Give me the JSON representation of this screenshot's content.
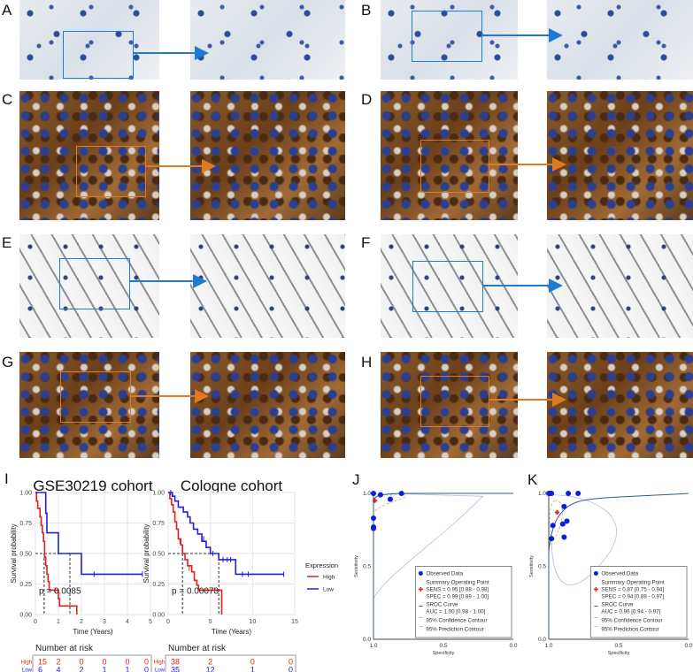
{
  "panels": {
    "labels": [
      "A",
      "B",
      "C",
      "D",
      "E",
      "F",
      "G",
      "H",
      "I",
      "J",
      "K"
    ]
  },
  "colors": {
    "blue_box": "#1f7bd0",
    "orange_box": "#e07a20",
    "high": "#e02020",
    "low": "#2020e0"
  },
  "chart_data": [
    {
      "type": "line",
      "subtype": "kaplan-meier",
      "title": "GSE30219 cohort",
      "xlabel": "Time (Years)",
      "ylabel": "Survival probability",
      "xlim": [
        0,
        5
      ],
      "ylim": [
        0,
        1
      ],
      "xticks": [
        "0",
        "1",
        "2",
        "3",
        "4",
        "5"
      ],
      "yticks": [
        "0.00",
        "0.25",
        "0.50",
        "0.75",
        "1.00"
      ],
      "pvalue": "p = 0.0085",
      "grid": true,
      "series": [
        {
          "name": "High",
          "color": "#e02020",
          "points": [
            [
              0,
              1
            ],
            [
              0.05,
              0.93
            ],
            [
              0.1,
              0.87
            ],
            [
              0.2,
              0.8
            ],
            [
              0.25,
              0.73
            ],
            [
              0.3,
              0.67
            ],
            [
              0.35,
              0.6
            ],
            [
              0.4,
              0.47
            ],
            [
              0.45,
              0.4
            ],
            [
              0.5,
              0.33
            ],
            [
              0.55,
              0.27
            ],
            [
              0.6,
              0.2
            ],
            [
              1.0,
              0.13
            ],
            [
              1.05,
              0.07
            ],
            [
              1.8,
              0
            ]
          ],
          "censored": [
            [
              0.85,
              0.2
            ]
          ],
          "median": 0.38
        },
        {
          "name": "Low",
          "color": "#2020e0",
          "points": [
            [
              0,
              1
            ],
            [
              0.45,
              0.83
            ],
            [
              0.5,
              0.67
            ],
            [
              1.0,
              0.5
            ],
            [
              2.0,
              0.33
            ],
            [
              4.65,
              0.33
            ]
          ],
          "censored": [
            [
              2.55,
              0.33
            ],
            [
              4.65,
              0.33
            ]
          ],
          "median": 1.5
        }
      ],
      "risk_table": {
        "title": "Number at risk",
        "rows": [
          {
            "label": "High",
            "values": [
              "15",
              "2",
              "0",
              "0",
              "0",
              "0"
            ]
          },
          {
            "label": "Low",
            "values": [
              "6",
              "4",
              "2",
              "1",
              "1",
              "0"
            ]
          }
        ]
      }
    },
    {
      "type": "line",
      "subtype": "kaplan-meier",
      "title": "Cologne cohort",
      "xlabel": "Time (Years)",
      "ylabel": "Survival probability",
      "xlim": [
        0,
        15
      ],
      "ylim": [
        0,
        1
      ],
      "xticks": [
        "0",
        "5",
        "10",
        "15"
      ],
      "yticks": [
        "0.00",
        "0.25",
        "0.50",
        "0.75",
        "1.00"
      ],
      "pvalue": "p = 0.00073",
      "grid": true,
      "series": [
        {
          "name": "High",
          "color": "#e02020",
          "points": [
            [
              0,
              1
            ],
            [
              0.2,
              0.95
            ],
            [
              0.4,
              0.9
            ],
            [
              0.6,
              0.84
            ],
            [
              0.8,
              0.76
            ],
            [
              1.0,
              0.7
            ],
            [
              1.2,
              0.62
            ],
            [
              1.5,
              0.57
            ],
            [
              1.7,
              0.5
            ],
            [
              2.0,
              0.45
            ],
            [
              2.3,
              0.4
            ],
            [
              2.8,
              0.35
            ],
            [
              3.1,
              0.28
            ],
            [
              3.4,
              0.24
            ],
            [
              3.6,
              0.2
            ],
            [
              6.3,
              0.2
            ],
            [
              6.35,
              0
            ]
          ],
          "censored": [
            [
              1.4,
              0.6
            ],
            [
              2.5,
              0.38
            ],
            [
              5.5,
              0.2
            ]
          ],
          "median": 1.7
        },
        {
          "name": "Low",
          "color": "#2020e0",
          "points": [
            [
              0,
              1
            ],
            [
              0.5,
              0.97
            ],
            [
              0.8,
              0.93
            ],
            [
              1.2,
              0.88
            ],
            [
              1.8,
              0.84
            ],
            [
              2.3,
              0.8
            ],
            [
              2.6,
              0.75
            ],
            [
              3.0,
              0.7
            ],
            [
              3.5,
              0.66
            ],
            [
              4.0,
              0.6
            ],
            [
              4.5,
              0.55
            ],
            [
              5.0,
              0.5
            ],
            [
              5.8,
              0.5
            ],
            [
              6.0,
              0.45
            ],
            [
              7.8,
              0.45
            ],
            [
              8.0,
              0.33
            ],
            [
              13.7,
              0.33
            ]
          ],
          "censored": [
            [
              0.3,
              1
            ],
            [
              4.2,
              0.62
            ],
            [
              5.3,
              0.5
            ],
            [
              6.5,
              0.45
            ],
            [
              7.0,
              0.45
            ],
            [
              7.4,
              0.45
            ],
            [
              8.8,
              0.33
            ],
            [
              9.5,
              0.33
            ],
            [
              13.7,
              0.33
            ]
          ],
          "median": 6.0
        }
      ],
      "risk_table": {
        "title": "Number at risk",
        "rows": [
          {
            "label": "High",
            "values": [
              "38",
              "2",
              "0",
              "0"
            ]
          },
          {
            "label": "Low",
            "values": [
              "35",
              "12",
              "1",
              "0"
            ]
          }
        ]
      }
    },
    {
      "type": "scatter",
      "subtype": "sroc",
      "xlabel": "Specificity",
      "ylabel": "Sensitivity",
      "xlim": [
        1,
        0
      ],
      "ylim": [
        0,
        1
      ],
      "xticks": [
        "1.0",
        "0.5",
        "0.0"
      ],
      "yticks": [
        "0.0",
        "0.5",
        "1.0"
      ],
      "observed": [
        [
          1.0,
          1.0
        ],
        [
          0.95,
          0.99
        ],
        [
          0.88,
          0.96
        ],
        [
          0.8,
          1.0
        ],
        [
          1.0,
          0.83
        ],
        [
          1.0,
          0.77
        ],
        [
          1.0,
          0.76
        ]
      ],
      "summary": [
        0.99,
        0.95
      ],
      "legend": [
        "Observed Data",
        "Summary Operating Point",
        "SENS = 0.95 [0.88 - 0.98]",
        "SPEC = 0.99 [0.89 - 1.00]",
        "SROC Curve",
        "AUC = 1.00 [0.98 - 1.00]",
        "95% Confidence Contour",
        "95% Prediction Contour"
      ]
    },
    {
      "type": "scatter",
      "subtype": "sroc",
      "xlabel": "Specificity",
      "ylabel": "Sensitivity",
      "xlim": [
        1,
        0
      ],
      "ylim": [
        0,
        1
      ],
      "xticks": [
        "1.0",
        "0.5",
        "0.0"
      ],
      "yticks": [
        "0.0",
        "0.5",
        "1.0"
      ],
      "observed": [
        [
          1.0,
          1.0
        ],
        [
          0.99,
          1.0
        ],
        [
          0.98,
          1.0
        ],
        [
          0.86,
          1.0
        ],
        [
          0.79,
          1.0
        ],
        [
          0.89,
          0.91
        ],
        [
          0.97,
          0.78
        ],
        [
          0.9,
          0.79
        ],
        [
          0.87,
          0.81
        ],
        [
          0.98,
          0.69
        ],
        [
          0.89,
          0.7
        ]
      ],
      "summary": [
        0.94,
        0.87
      ],
      "legend": [
        "Observed Data",
        "Summary Operating Point",
        "SENS = 0.87 [0.75 - 0.94]",
        "SPEC = 0.94 [0.88 - 0.97]",
        "SROC Curve",
        "AUC = 0.96 [0.94 - 0.97]",
        "95% Confidence Contour",
        "95% Prediction Contour"
      ]
    }
  ],
  "km_legend": {
    "title": "Expression",
    "items": [
      "High",
      "Low"
    ]
  }
}
